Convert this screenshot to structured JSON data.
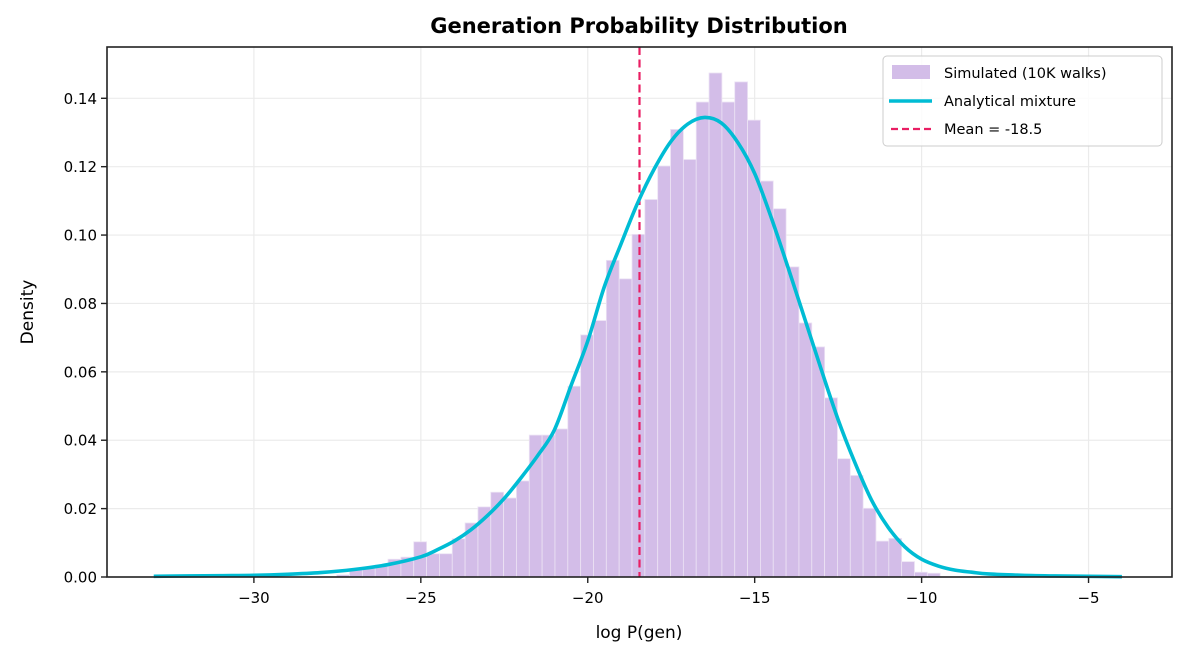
{
  "chart_data": {
    "type": "bar",
    "title": "Generation Probability Distribution",
    "xlabel": "log P(gen)",
    "ylabel": "Density",
    "xlim": [
      -34.4,
      -2.5
    ],
    "ylim": [
      0,
      0.155
    ],
    "xticks": [
      -30,
      -25,
      -20,
      -15,
      -10,
      -5
    ],
    "xtick_labels": [
      "−30",
      "−25",
      "−20",
      "−15",
      "−10",
      "−5"
    ],
    "yticks": [
      0.0,
      0.02,
      0.04,
      0.06,
      0.08,
      0.1,
      0.12,
      0.14
    ],
    "ytick_labels": [
      "0.00",
      "0.02",
      "0.04",
      "0.06",
      "0.08",
      "0.10",
      "0.12",
      "0.14"
    ],
    "grid": true,
    "legend_position": "top-right",
    "colors": {
      "histogram": "#d3bde8",
      "histogram_edge": "#ece3f4",
      "curve": "#00bcd4",
      "mean_line": "#e91e63",
      "grid": "#ebebeb",
      "axis": "#222222"
    },
    "histogram": {
      "name": "Simulated (10K walks)",
      "bin_start": -27.52,
      "bin_width": 0.3846,
      "values": [
        0.0006,
        0.0022,
        0.0029,
        0.0035,
        0.0052,
        0.0058,
        0.0103,
        0.0068,
        0.0068,
        0.0112,
        0.0158,
        0.0205,
        0.0248,
        0.0231,
        0.0281,
        0.0415,
        0.0415,
        0.0433,
        0.0558,
        0.0708,
        0.075,
        0.0926,
        0.0872,
        0.1002,
        0.1104,
        0.1202,
        0.1309,
        0.1221,
        0.1389,
        0.1474,
        0.1389,
        0.1448,
        0.1336,
        0.1158,
        0.1077,
        0.0907,
        0.0743,
        0.0673,
        0.0524,
        0.0346,
        0.0297,
        0.0201,
        0.0105,
        0.0113,
        0.0045,
        0.0014,
        0.0011
      ]
    },
    "curve": {
      "name": "Analytical mixture",
      "x": [
        -33,
        -32,
        -31,
        -30,
        -29,
        -28,
        -27,
        -26,
        -25,
        -24.5,
        -24,
        -23.5,
        -23,
        -22.5,
        -22,
        -21.5,
        -21,
        -20.5,
        -20,
        -19.5,
        -19,
        -18.5,
        -18,
        -17.5,
        -17,
        -16.5,
        -16,
        -15.5,
        -15,
        -14.5,
        -14,
        -13.5,
        -13,
        -12.5,
        -12,
        -11.5,
        -11,
        -10.5,
        -10,
        -9.5,
        -9,
        -8.5,
        -8,
        -7,
        -6,
        -5,
        -4
      ],
      "y": [
        0.0002,
        0.0003,
        0.0004,
        0.0005,
        0.0008,
        0.0013,
        0.0022,
        0.0036,
        0.0059,
        0.008,
        0.0105,
        0.0138,
        0.018,
        0.023,
        0.029,
        0.0355,
        0.043,
        0.056,
        0.069,
        0.085,
        0.0975,
        0.1095,
        0.1195,
        0.1275,
        0.1325,
        0.1344,
        0.1328,
        0.127,
        0.118,
        0.105,
        0.0905,
        0.0755,
        0.0605,
        0.046,
        0.0335,
        0.0225,
        0.0145,
        0.0088,
        0.0052,
        0.0032,
        0.002,
        0.0014,
        0.0009,
        0.0005,
        0.0003,
        0.0002,
        0.0001
      ]
    },
    "mean_line": {
      "name": "Mean = -18.5",
      "x": -18.45
    },
    "legend": [
      {
        "label": "Simulated (10K walks)",
        "kind": "patch"
      },
      {
        "label": "Analytical mixture",
        "kind": "line"
      },
      {
        "label": "Mean = -18.5",
        "kind": "dashed"
      }
    ]
  }
}
